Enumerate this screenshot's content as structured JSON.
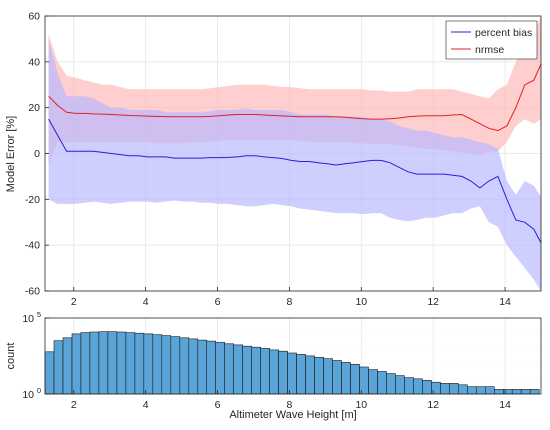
{
  "chart_data": [
    {
      "type": "line",
      "ylabel": "Model Error [%]",
      "xlim": [
        1.2,
        15
      ],
      "ylim": [
        -60,
        60
      ],
      "grid": true,
      "legend_placement": "top-right",
      "xticks": [
        2,
        4,
        6,
        8,
        10,
        12,
        14
      ],
      "yticks": [
        -60,
        -40,
        -20,
        0,
        20,
        40,
        60
      ],
      "colors": {
        "bias": "#2222dd",
        "bias_fill": "#b9b9ff",
        "nrmse": "#e02020",
        "nrmse_fill": "#ffb9b9"
      },
      "x": [
        1.3,
        1.55,
        1.8,
        2.05,
        2.3,
        2.55,
        2.8,
        3.05,
        3.3,
        3.55,
        3.8,
        4.05,
        4.3,
        4.55,
        4.8,
        5.05,
        5.3,
        5.55,
        5.8,
        6.05,
        6.3,
        6.55,
        6.8,
        7.05,
        7.3,
        7.55,
        7.8,
        8.05,
        8.3,
        8.55,
        8.8,
        9.05,
        9.3,
        9.55,
        9.8,
        10.05,
        10.3,
        10.55,
        10.8,
        11.05,
        11.3,
        11.55,
        11.8,
        12.05,
        12.3,
        12.55,
        12.8,
        13.05,
        13.3,
        13.55,
        13.8,
        14.05,
        14.3,
        14.55,
        14.8,
        15.0
      ],
      "series": [
        {
          "name": "percent bias",
          "values": [
            15,
            8,
            1,
            1,
            1,
            1,
            0.5,
            0,
            -0.5,
            -1,
            -1,
            -1.5,
            -1.5,
            -1.5,
            -2,
            -2,
            -2,
            -2,
            -1.8,
            -1.8,
            -1.7,
            -1.5,
            -1,
            -1,
            -1.5,
            -1.8,
            -2.2,
            -3,
            -3.5,
            -3.5,
            -4,
            -4.5,
            -5,
            -4.5,
            -4,
            -3.5,
            -3,
            -3,
            -4,
            -6,
            -8,
            -9,
            -9,
            -9,
            -9,
            -9.5,
            -10,
            -12,
            -15,
            -12,
            -10,
            -20,
            -29,
            -30,
            -33,
            -39
          ],
          "upper": [
            50,
            35,
            25,
            25,
            25,
            24,
            22,
            20,
            20,
            19,
            19,
            19,
            19,
            18,
            18,
            18,
            18,
            18,
            18.5,
            19,
            19,
            19,
            19.5,
            19,
            19,
            19,
            19,
            18,
            17,
            17,
            17,
            17,
            16,
            16,
            16,
            16,
            15,
            15,
            14,
            12,
            11,
            10,
            10,
            9,
            8,
            7,
            7,
            6,
            5,
            4,
            2,
            -12,
            -18,
            -12,
            -14,
            -19
          ],
          "lower": [
            -20,
            -22,
            -22,
            -22,
            -21.5,
            -21,
            -21.5,
            -22,
            -21.5,
            -21,
            -21,
            -21,
            -21.5,
            -21,
            -20.5,
            -21,
            -21,
            -21.5,
            -21.5,
            -22,
            -22,
            -22.5,
            -23,
            -23,
            -22.5,
            -22,
            -22.5,
            -23,
            -24,
            -24.5,
            -25,
            -25.5,
            -26,
            -26,
            -26,
            -26.5,
            -26,
            -26,
            -28,
            -29,
            -29.5,
            -29,
            -28,
            -28,
            -27,
            -26,
            -26,
            -24,
            -23,
            -30,
            -32,
            -40,
            -45,
            -50,
            -55,
            -60
          ]
        },
        {
          "name": "nrmse",
          "values": [
            25,
            21,
            18,
            17.5,
            17.5,
            17.3,
            17.2,
            17,
            16.8,
            16.6,
            16.5,
            16.3,
            16.2,
            16.1,
            16,
            16,
            16,
            16,
            16.2,
            16.5,
            16.8,
            17,
            17,
            17,
            16.8,
            16.6,
            16.4,
            16.2,
            16,
            16,
            16,
            16,
            16,
            15.8,
            15.5,
            15.2,
            15,
            15,
            15.2,
            15.5,
            16,
            16.3,
            16.5,
            16.5,
            16.5,
            16.8,
            17,
            15,
            13,
            11,
            10,
            12,
            20,
            30,
            32,
            39
          ],
          "upper": [
            52,
            40,
            34,
            33,
            32,
            31,
            30,
            30,
            29,
            28,
            28,
            28,
            28,
            28,
            28,
            28,
            28,
            28,
            28.5,
            29,
            29.5,
            30,
            30,
            30,
            30,
            29.5,
            29,
            29,
            28.5,
            28,
            28,
            28,
            28,
            28,
            28,
            28,
            27.5,
            27.5,
            27,
            27,
            27,
            28,
            28,
            28,
            28,
            28,
            27,
            26,
            25,
            24,
            28,
            30,
            40,
            45,
            52,
            60
          ],
          "lower": [
            -5,
            5,
            5,
            5,
            5,
            5,
            5,
            5,
            5,
            5,
            5,
            5,
            4.5,
            4.5,
            4.5,
            4.5,
            5,
            5,
            5,
            5.5,
            6,
            6,
            6,
            6,
            6,
            6,
            6,
            6,
            5.5,
            5,
            5,
            5,
            5,
            5,
            4.5,
            4.5,
            4,
            4,
            4,
            3.5,
            3,
            2.5,
            2,
            2,
            1.5,
            1,
            0.5,
            0,
            -0.5,
            1,
            1,
            5,
            12,
            15,
            13,
            15
          ]
        }
      ]
    },
    {
      "type": "bar",
      "xlabel": "Altimeter Wave Height [m]",
      "ylabel": "count",
      "yscale": "log",
      "ylim": [
        1,
        100000
      ],
      "ytick_labels": [
        {
          "value": 1,
          "base": "10",
          "exp": "0"
        },
        {
          "value": 100000,
          "base": "10",
          "exp": "5"
        }
      ],
      "xlim": [
        1.2,
        15
      ],
      "xticks": [
        2,
        4,
        6,
        8,
        10,
        12,
        14
      ],
      "grid": true,
      "bar_color": "#5aa4d8",
      "bin_width": 0.25,
      "x": [
        1.2,
        1.45,
        1.7,
        1.95,
        2.2,
        2.45,
        2.7,
        2.95,
        3.2,
        3.45,
        3.7,
        3.95,
        4.2,
        4.45,
        4.7,
        4.95,
        5.2,
        5.45,
        5.7,
        5.95,
        6.2,
        6.45,
        6.7,
        6.95,
        7.2,
        7.45,
        7.7,
        7.95,
        8.2,
        8.45,
        8.7,
        8.95,
        9.2,
        9.45,
        9.7,
        9.95,
        10.2,
        10.45,
        10.7,
        10.95,
        11.2,
        11.45,
        11.7,
        11.95,
        12.2,
        12.45,
        12.7,
        12.95,
        13.2,
        13.45,
        13.7,
        13.95,
        14.2,
        14.45,
        14.7
      ],
      "values": [
        600,
        3200,
        5000,
        9000,
        11000,
        12000,
        12500,
        12500,
        12000,
        11000,
        10000,
        9000,
        8000,
        7000,
        6000,
        5000,
        4200,
        3500,
        3000,
        2500,
        2000,
        1700,
        1400,
        1200,
        1000,
        800,
        650,
        500,
        400,
        320,
        260,
        210,
        160,
        120,
        90,
        60,
        40,
        30,
        22,
        16,
        12,
        10,
        8,
        6,
        5,
        5,
        4,
        3,
        3,
        3,
        2,
        2,
        2,
        2,
        2
      ]
    }
  ]
}
